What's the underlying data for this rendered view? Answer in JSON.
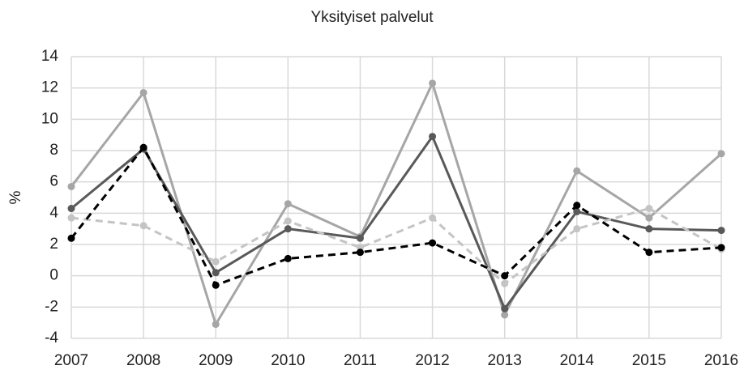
{
  "chart_data": {
    "type": "line",
    "title": "Yksityiset palvelut",
    "y_label": "%",
    "categories": [
      "2007",
      "2008",
      "2009",
      "2010",
      "2011",
      "2012",
      "2013",
      "2014",
      "2015",
      "2016"
    ],
    "series": [
      {
        "color": "#a6a6a6",
        "dashed": false,
        "values": [
          5.7,
          11.7,
          -3.1,
          4.6,
          2.5,
          12.3,
          -2.5,
          6.7,
          3.7,
          7.8
        ]
      },
      {
        "color": "#595959",
        "dashed": false,
        "values": [
          4.3,
          8.1,
          0.2,
          3.0,
          2.4,
          8.9,
          -2.1,
          4.1,
          3.0,
          2.9
        ]
      },
      {
        "color": "#c4c4c4",
        "dashed": true,
        "values": [
          3.7,
          3.2,
          0.9,
          3.5,
          1.8,
          3.7,
          -0.5,
          3.0,
          4.3,
          1.7
        ]
      },
      {
        "color": "#000000",
        "dashed": true,
        "values": [
          2.4,
          8.2,
          -0.6,
          1.1,
          1.5,
          2.1,
          0.0,
          4.5,
          1.5,
          1.8
        ]
      }
    ],
    "ylim": [
      -4,
      14
    ],
    "yticks": [
      -4,
      -2,
      0,
      2,
      4,
      6,
      8,
      10,
      12,
      14
    ],
    "grid": true
  }
}
